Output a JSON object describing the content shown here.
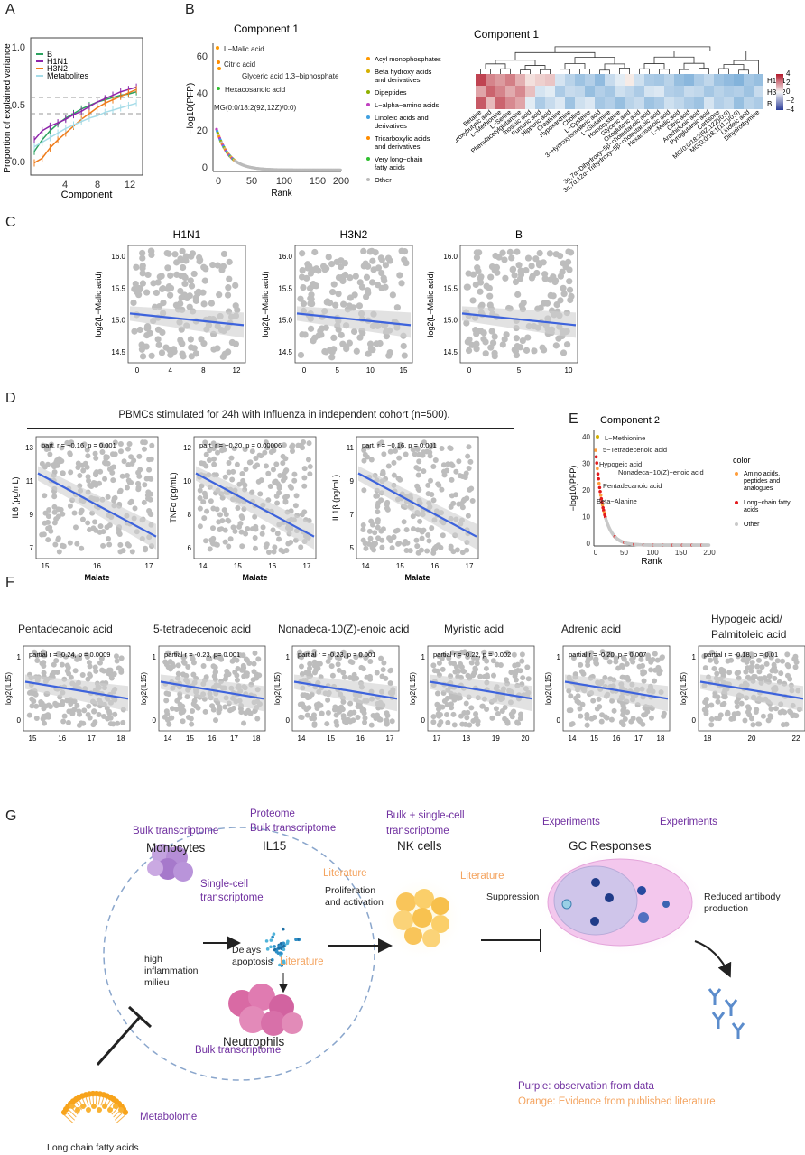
{
  "panel_labels": [
    "A",
    "B",
    "C",
    "D",
    "E",
    "F",
    "G"
  ],
  "colors": {
    "scatter": "#bdbdbd",
    "fit": "#3d63dc",
    "band": "#cfcfcf",
    "purple": "#7030a0",
    "orange": "#f4a460"
  },
  "panelA": {
    "xlabel": "Component",
    "ylabel": "Proportion of explained variance",
    "series": [
      {
        "name": "B",
        "color": "#2ca25f"
      },
      {
        "name": "H1N1",
        "color": "#8e24aa"
      },
      {
        "name": "H3N2",
        "color": "#ef7c1b"
      },
      {
        "name": "Metabolites",
        "color": "#a6dce8"
      }
    ]
  },
  "panelB": {
    "scatter_title": "Component 1",
    "xlabel": "Rank",
    "ylabel": "−log10(PFP)",
    "labels": [
      "L−Malic acid",
      "Citric acid",
      "Glyceric acid 1,3−biphosphate",
      "Hexacosanoic acid",
      "MG(0:0/18:2(9Z,12Z)/0:0)"
    ],
    "legend": [
      {
        "name": "Acyl monophosphates",
        "color": "#ff9900"
      },
      {
        "name": "Beta hydroxy acids and derivatives",
        "color": "#d4b000"
      },
      {
        "name": "Dipeptides",
        "color": "#8fb000"
      },
      {
        "name": "L−alpha−amino acids",
        "color": "#c040c0"
      },
      {
        "name": "Linoleic acids and derivatives",
        "color": "#40a0e0"
      },
      {
        "name": "Tricarboxylic acids and derivatives",
        "color": "#ff8c00"
      },
      {
        "name": "Very long−chain fatty acids",
        "color": "#30c030"
      },
      {
        "name": "Other",
        "color": "#bbbbbb"
      }
    ],
    "heatmap_title": "Component 1",
    "heatmap_rows": [
      "H1N1",
      "H3N2",
      "B"
    ],
    "heatmap_cols": [
      "Betaine",
      "3−Hydroxybutyric acid",
      "L−Methionine",
      "L−Serine",
      "Phenylacetylglutamine",
      "Inosinic acid",
      "Fumaric acid",
      "Hippuric acid",
      "Creatinine",
      "Hypoxanthine",
      "Choline",
      "L−Cysteine",
      "3−Hydroxyisovaleric acid",
      "L−Glutamine",
      "Homocysteine",
      "Glyceric acid",
      "Oxoglutaric acid",
      "3α,7α−Dihydroxy−5β−cholestanoic acid",
      "3α,7α,12α−Trihydroxy−5β−cholestanoic acid",
      "Hexacosanoic acid",
      "L−Malic acid",
      "Citric acid",
      "Arachidonic acid",
      "Pyroglutamic acid",
      "Cortisone",
      "MG(0:0/18:2(9Z,12Z)/0:0)",
      "MG(0:0/18:1(11Z)/0:0)",
      "Linoleic acid",
      "Dihydrothymine"
    ],
    "colorbar_ticks": [
      "4",
      "2",
      "0",
      "−2",
      "−4"
    ]
  },
  "panelC": {
    "ylabel": "log2(L−Malic acid)",
    "plots": [
      {
        "title": "H1N1",
        "xticks": [
          "0",
          "4",
          "8",
          "12"
        ],
        "yticks": [
          "16.0",
          "15.5",
          "15.0",
          "14.5"
        ]
      },
      {
        "title": "H3N2",
        "xticks": [
          "0",
          "5",
          "10",
          "15"
        ],
        "yticks": [
          "16.0",
          "15.5",
          "15.0",
          "14.5"
        ]
      },
      {
        "title": "B",
        "xticks": [
          "0",
          "5",
          "10"
        ],
        "yticks": [
          "16.0",
          "15.5",
          "15.0",
          "14.5"
        ]
      }
    ]
  },
  "panelD": {
    "title": "PBMCs stimulated for 24h with Influenza in independent cohort (n=500).",
    "xlabel": "Malate",
    "plots": [
      {
        "ylabel": "IL6 (pg/mL)",
        "stat": "part. r = −0.16, p = 0.001",
        "xticks": [
          "15",
          "16",
          "17"
        ],
        "yticks": [
          "13",
          "11",
          "9",
          "7"
        ]
      },
      {
        "ylabel": "TNFα (pg/mL)",
        "stat": "part. r = −0.20, p = 0.00006",
        "xticks": [
          "14",
          "15",
          "16",
          "17"
        ],
        "yticks": [
          "12",
          "10",
          "8",
          "6"
        ]
      },
      {
        "ylabel": "IL1β (pg/mL)",
        "stat": "part. r = −0.16, p = 0.001",
        "xticks": [
          "14",
          "15",
          "16",
          "17"
        ],
        "yticks": [
          "11",
          "9",
          "7",
          "5"
        ]
      }
    ]
  },
  "panelE": {
    "title": "Component 2",
    "xlabel": "Rank",
    "ylabel": "−log10(PFP)",
    "labels": [
      "L−Methionine",
      "5−Tetradecenoic acid",
      "Hypogeic acid",
      "Nonadeca−10(Z)−enoic acid",
      "Pentadecanoic acid",
      "Beta−Alanine"
    ],
    "legend_title": "color",
    "legend": [
      {
        "name": "Amino acids, peptides and analogues",
        "color": "#ff9d3b"
      },
      {
        "name": "Long−chain fatty acids",
        "color": "#e31a1c"
      },
      {
        "name": "Other",
        "color": "#c8c8c8"
      }
    ],
    "xticks": [
      "0",
      "50",
      "100",
      "150",
      "200"
    ],
    "yticks": [
      "40",
      "30",
      "20",
      "10",
      "0"
    ]
  },
  "panelF": {
    "ylabel": "log2(IL15)",
    "plots": [
      {
        "title": "Pentadecanoic acid",
        "stat": "partial r = -0.24, p = 0.0009",
        "xticks": [
          "15",
          "16",
          "17",
          "18"
        ]
      },
      {
        "title": "5-tetradecenoic acid",
        "stat": "partial r = -0.23, p= 0.001",
        "xticks": [
          "14",
          "15",
          "16",
          "17",
          "18"
        ]
      },
      {
        "title": "Nonadeca-10(Z)-enoic acid",
        "stat": "partial r = -0.23, p = 0.001",
        "xticks": [
          "14",
          "15",
          "16",
          "17"
        ]
      },
      {
        "title": "Myristic acid",
        "stat": "partial r = -0.22, p = 0.002",
        "xticks": [
          "17",
          "18",
          "19",
          "20"
        ]
      },
      {
        "title": "Adrenic acid",
        "stat": "partial r = -0.20, p = 0.007",
        "xticks": [
          "14",
          "15",
          "16",
          "17",
          "18"
        ]
      },
      {
        "title": "Hypogeic acid/ Palmitoleic acid",
        "stat": "partial r = -0.18, p = 0.01",
        "xticks": [
          "18",
          "20",
          "22"
        ]
      }
    ],
    "yticks": [
      "1",
      "0"
    ]
  },
  "panelG": {
    "monocytes": "Monocytes",
    "il15": "IL15",
    "nk": "NK cells",
    "gc": "GC Responses",
    "neutrophils": "Neutrophils",
    "lcfa": "Long chain fatty acids",
    "metabolome": "Metabolome",
    "proteome": "Proteome",
    "bulk_tx_il15": "Bulk transcriptome",
    "bulk_tx_mono": "Bulk transcriptome",
    "single_cell": "Single-cell transcriptome",
    "bulk_sc_nk": "Bulk + single-cell transcriptome",
    "experiments1": "Experiments",
    "experiments2": "Experiments",
    "literature1": "Literature",
    "literature2": "Literature",
    "literature3": "Literature",
    "high_inflam": "high inflammation milieu",
    "delays": "Delays apoptosis",
    "prolif": "Proliferation and activation",
    "suppression": "Suppression",
    "reduced": "Reduced antibody production",
    "bulk_tx_neut": "Bulk transcriptome",
    "legend_purple": "Purple: observation from data",
    "legend_orange": "Orange: Evidence from published literature"
  }
}
